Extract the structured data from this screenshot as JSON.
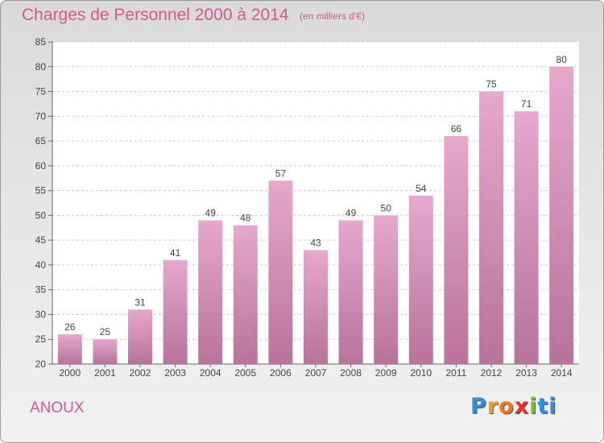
{
  "chart_data": {
    "type": "bar",
    "title": "Charges de Personnel 2000 à 2014",
    "unit_note": "(en milliers d'€)",
    "categories": [
      "2000",
      "2001",
      "2002",
      "2003",
      "2004",
      "2005",
      "2006",
      "2007",
      "2008",
      "2009",
      "2010",
      "2011",
      "2012",
      "2013",
      "2014"
    ],
    "values": [
      26,
      25,
      31,
      41,
      49,
      48,
      57,
      43,
      49,
      50,
      54,
      66,
      75,
      71,
      80
    ],
    "ylim": [
      20,
      85
    ],
    "yticks": [
      20,
      25,
      30,
      35,
      40,
      45,
      50,
      55,
      60,
      65,
      70,
      75,
      80,
      85
    ],
    "grid": true,
    "bar_color": "#d998bd"
  },
  "location": "ANOUX",
  "brand": {
    "letters": [
      "P",
      "r",
      "o",
      "x",
      "i",
      "t",
      "i"
    ],
    "colors": [
      "#2f8fd8",
      "#f2a21c",
      "#f07a1a",
      "#e2362c",
      "#7bbf2a",
      "#2f8fd8",
      "#2f8fd8"
    ]
  }
}
